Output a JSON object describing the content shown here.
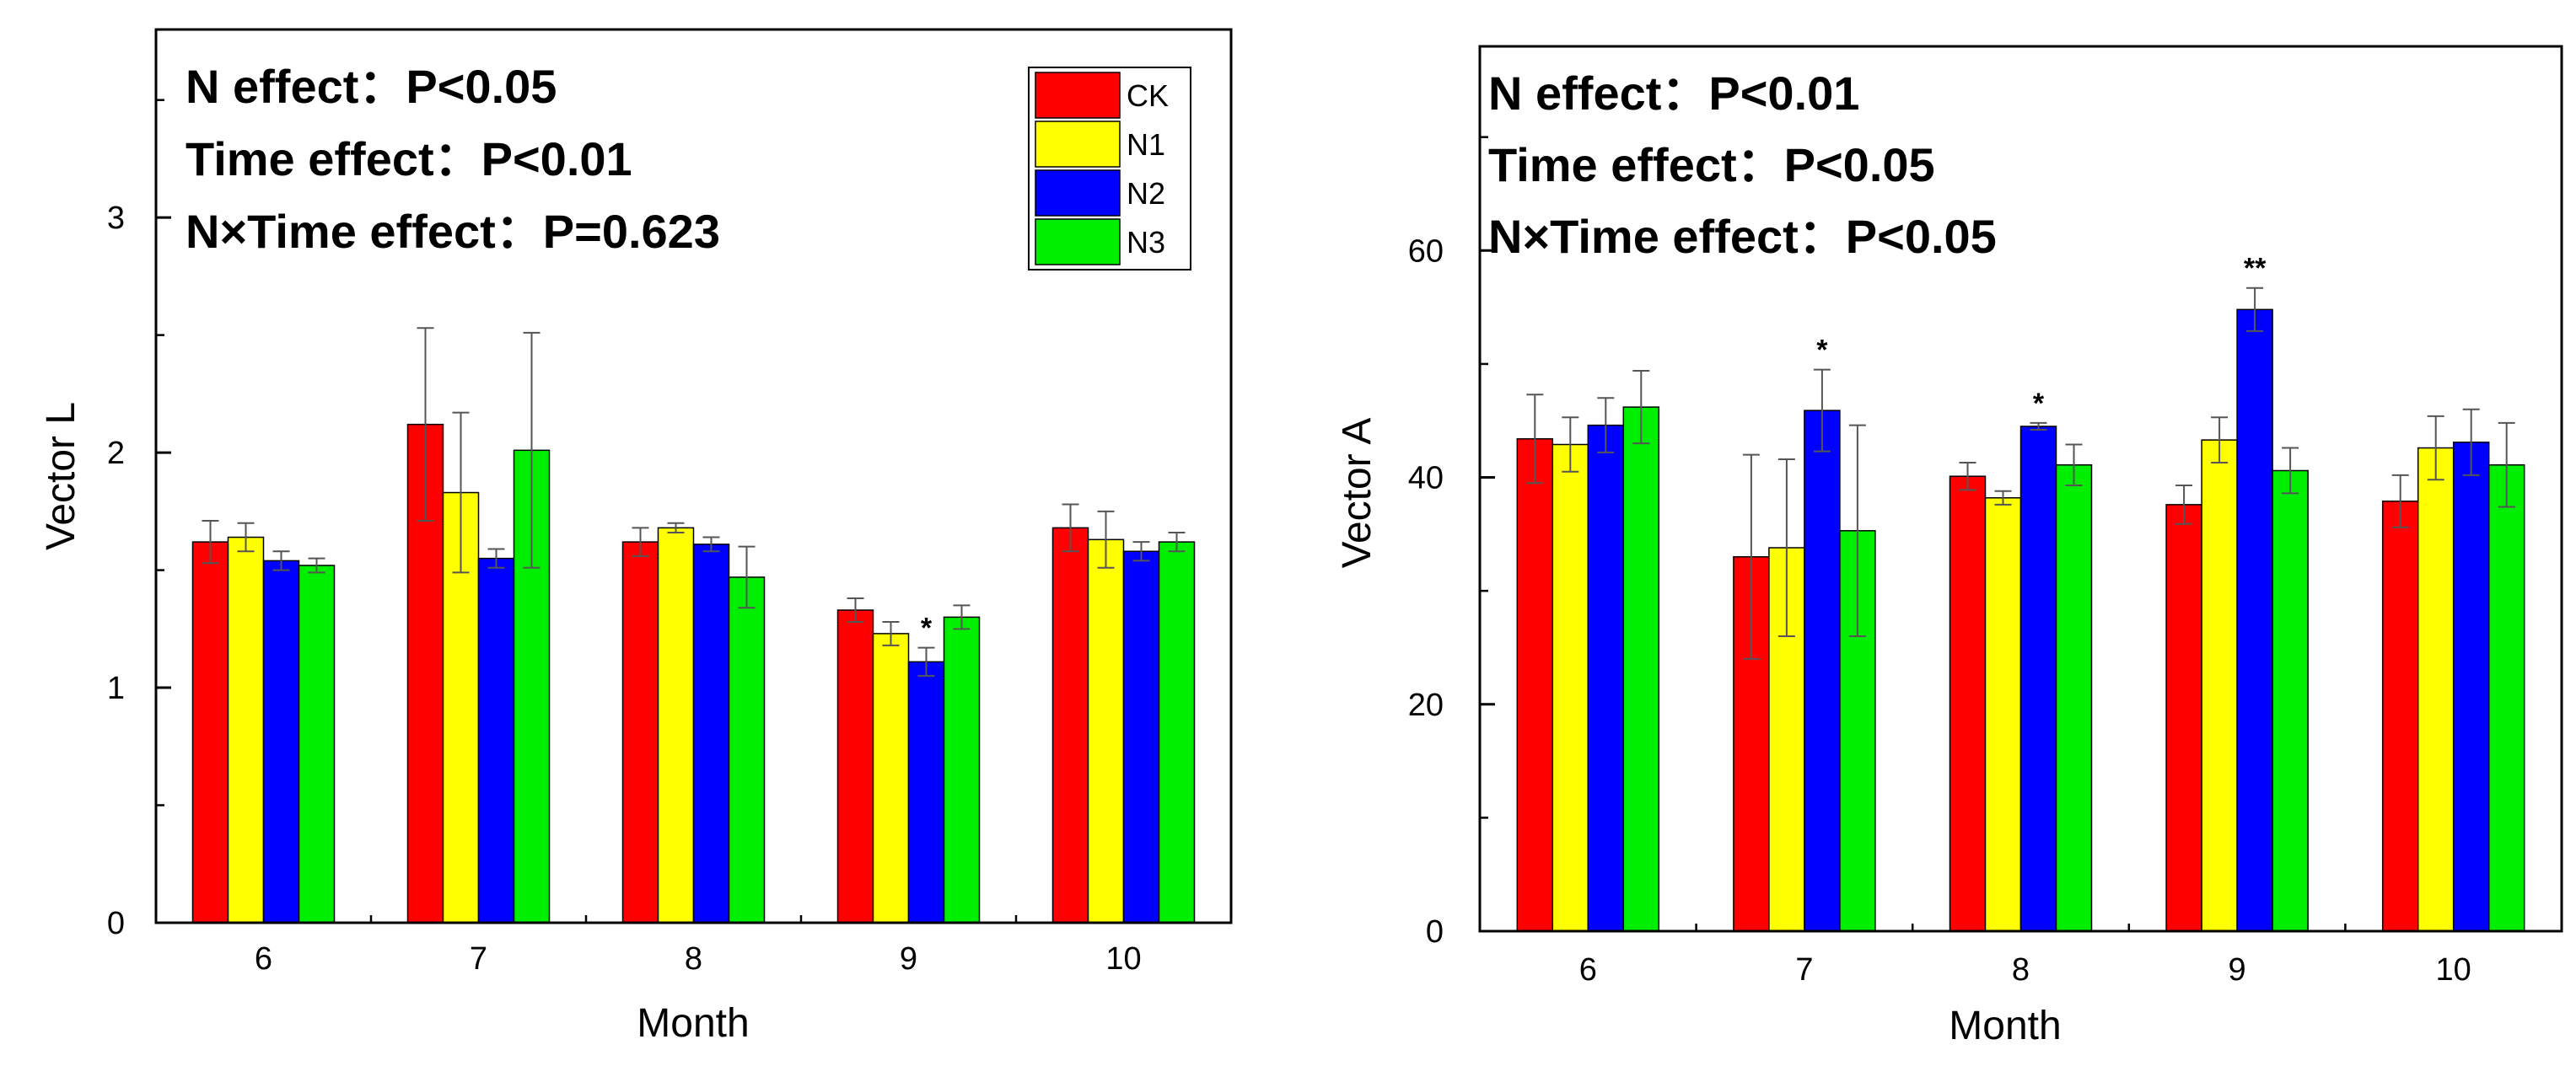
{
  "chart_data": [
    {
      "type": "bar",
      "ylabel": "Vector L",
      "xlabel": "Month",
      "categories": [
        "6",
        "7",
        "8",
        "9",
        "10"
      ],
      "ylim": [
        0,
        3.8
      ],
      "yticks": [
        "0",
        "1",
        "2",
        "3"
      ],
      "annotations": [
        "N effect：P<0.05",
        "Time effect：P<0.01",
        "N×Time effect：P=0.623"
      ],
      "legend": "top-right",
      "series": [
        {
          "name": "CK",
          "color": "#ff0000",
          "values": [
            1.62,
            2.12,
            1.62,
            1.33,
            1.68
          ],
          "errors": [
            0.09,
            0.41,
            0.06,
            0.05,
            0.1
          ]
        },
        {
          "name": "N1",
          "color": "#ffff00",
          "values": [
            1.64,
            1.83,
            1.68,
            1.23,
            1.63
          ],
          "errors": [
            0.06,
            0.34,
            0.02,
            0.05,
            0.12
          ]
        },
        {
          "name": "N2",
          "color": "#0000ff",
          "values": [
            1.54,
            1.55,
            1.61,
            1.11,
            1.58
          ],
          "errors": [
            0.04,
            0.04,
            0.03,
            0.06,
            0.04
          ]
        },
        {
          "name": "N3",
          "color": "#00ee00",
          "values": [
            1.52,
            2.01,
            1.47,
            1.3,
            1.62
          ],
          "errors": [
            0.03,
            0.5,
            0.13,
            0.05,
            0.04
          ]
        }
      ],
      "stars": [
        {
          "category": "9",
          "series": "N2",
          "text": "*"
        }
      ]
    },
    {
      "type": "bar",
      "ylabel": "Vector A",
      "xlabel": "Month",
      "categories": [
        "6",
        "7",
        "8",
        "9",
        "10"
      ],
      "ylim": [
        0,
        78
      ],
      "yticks": [
        "0",
        "20",
        "40",
        "60"
      ],
      "annotations": [
        "N effect：P<0.01",
        "Time effect：P<0.05",
        "N×Time effect：P<0.05"
      ],
      "series": [
        {
          "name": "CK",
          "color": "#ff0000",
          "values": [
            43.4,
            33.0,
            40.1,
            37.6,
            37.9
          ],
          "errors": [
            3.9,
            9.0,
            1.2,
            1.7,
            2.3
          ]
        },
        {
          "name": "N1",
          "color": "#ffff00",
          "values": [
            42.9,
            33.8,
            38.2,
            43.3,
            42.6
          ],
          "errors": [
            2.4,
            7.8,
            0.6,
            2.0,
            2.8
          ]
        },
        {
          "name": "N2",
          "color": "#0000ff",
          "values": [
            44.6,
            45.9,
            44.5,
            54.8,
            43.1
          ],
          "errors": [
            2.4,
            3.6,
            0.3,
            1.9,
            2.9
          ]
        },
        {
          "name": "N3",
          "color": "#00ee00",
          "values": [
            46.2,
            35.3,
            41.1,
            40.6,
            41.1
          ],
          "errors": [
            3.2,
            9.3,
            1.8,
            2.0,
            3.7
          ]
        }
      ],
      "stars": [
        {
          "category": "7",
          "series": "N2",
          "text": "*"
        },
        {
          "category": "8",
          "series": "N2",
          "text": "*"
        },
        {
          "category": "9",
          "series": "N2",
          "text": "**"
        }
      ]
    }
  ]
}
